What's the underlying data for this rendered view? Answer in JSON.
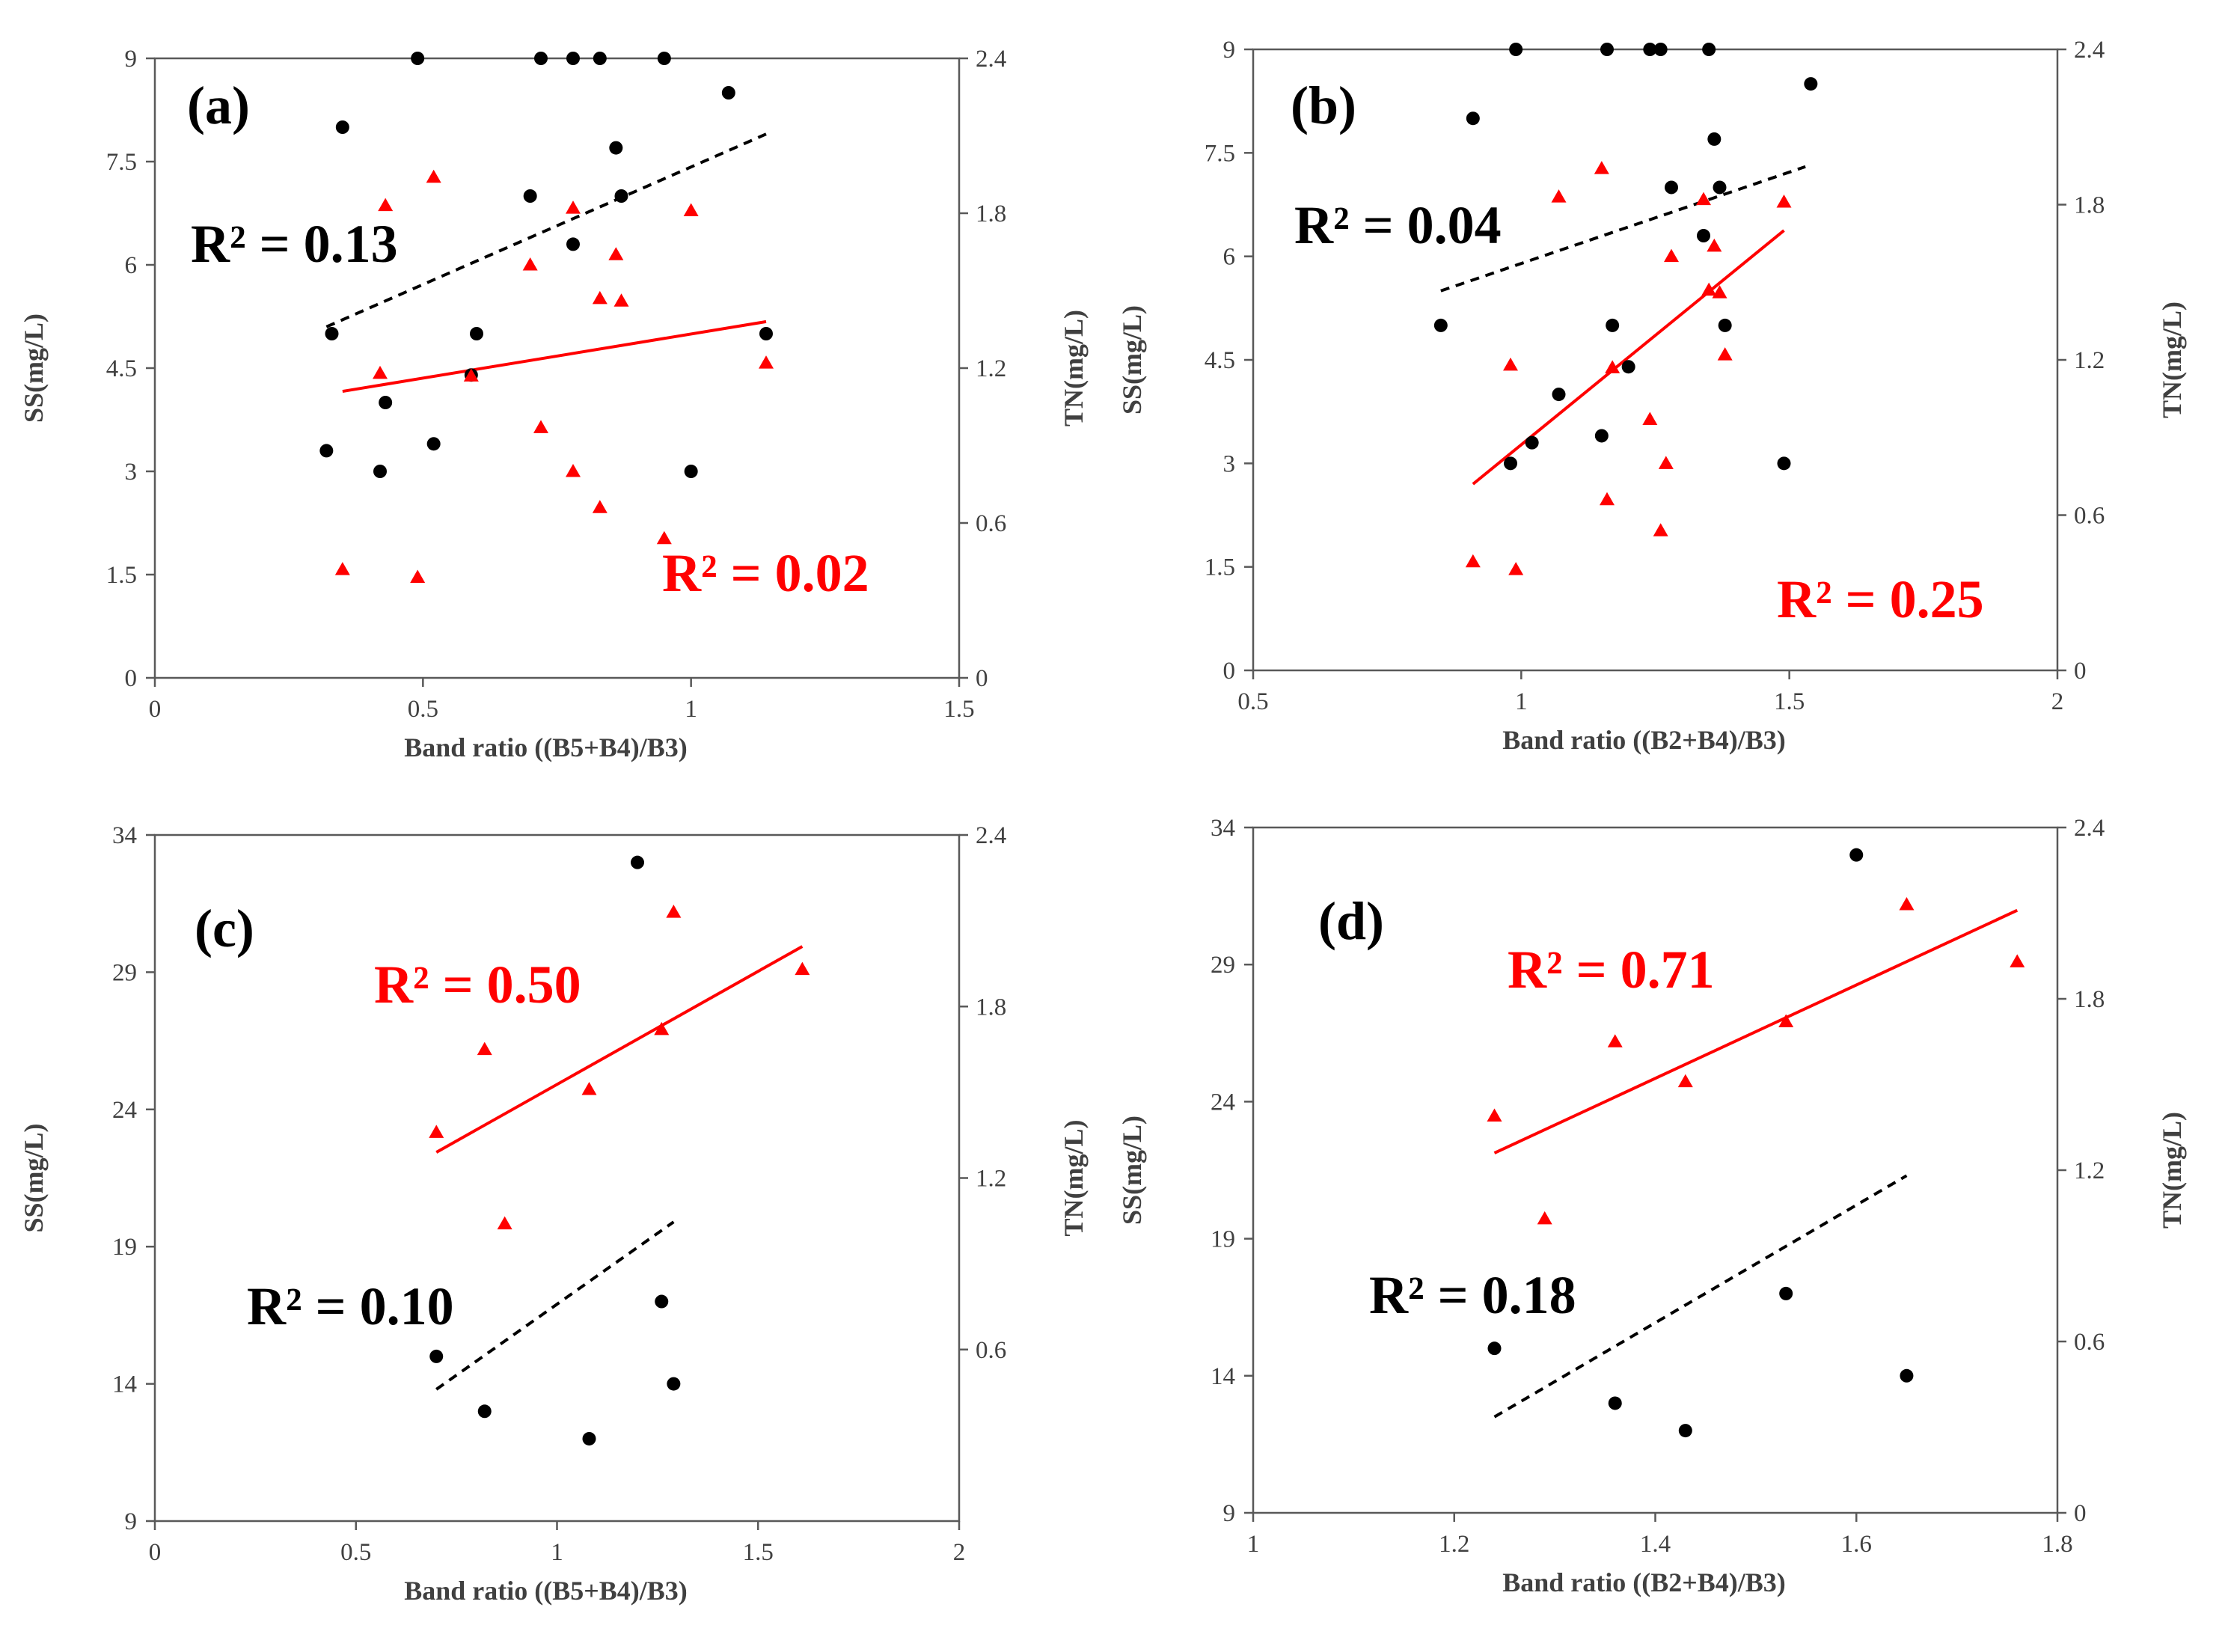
{
  "colors": {
    "ss": "#000000",
    "tn": "#ff0000",
    "axis": "#595959",
    "text": "#404040"
  },
  "chart_data": [
    {
      "type": "scatter",
      "panel_label": "(a)",
      "xlabel": "Band ratio ((B5+B4)/B3)",
      "ylabel_left": "SS(mg/L)",
      "ylabel_right": "TN(mg/L)",
      "xlim": [
        0,
        1.5
      ],
      "ylim_left": [
        0,
        9
      ],
      "ylim_right": [
        0,
        2.4
      ],
      "xticks": [
        0,
        0.5,
        1,
        1.5
      ],
      "xtick_labels": [
        "0",
        "0.5",
        "1",
        "1.5"
      ],
      "yticks_left": [
        0,
        1.5,
        3,
        4.5,
        6,
        7.5,
        9
      ],
      "ytick_labels_left": [
        "0",
        "1.5",
        "3",
        "4.5",
        "6",
        "7.5",
        "9"
      ],
      "yticks_right": [
        0,
        0.6,
        1.2,
        1.8,
        2.4
      ],
      "ytick_labels_right": [
        "0",
        "0.6",
        "1.2",
        "1.8",
        "2.4"
      ],
      "ss_points": [
        [
          0.32,
          3.3
        ],
        [
          0.33,
          5.0
        ],
        [
          0.35,
          8.0
        ],
        [
          0.42,
          3.0
        ],
        [
          0.43,
          4.0
        ],
        [
          0.49,
          9.0
        ],
        [
          0.52,
          3.4
        ],
        [
          0.59,
          4.4
        ],
        [
          0.6,
          5.0
        ],
        [
          0.7,
          7.0
        ],
        [
          0.72,
          9.0
        ],
        [
          0.78,
          6.3
        ],
        [
          0.78,
          9.0
        ],
        [
          0.83,
          9.0
        ],
        [
          0.86,
          7.7
        ],
        [
          0.87,
          7.0
        ],
        [
          0.95,
          9.0
        ],
        [
          1.0,
          3.0
        ],
        [
          1.07,
          8.5
        ],
        [
          1.14,
          5.0
        ]
      ],
      "tn_points": [
        [
          0.35,
          0.42
        ],
        [
          0.42,
          1.18
        ],
        [
          0.43,
          1.83
        ],
        [
          0.49,
          0.39
        ],
        [
          0.52,
          1.94
        ],
        [
          0.59,
          1.17
        ],
        [
          0.7,
          1.6
        ],
        [
          0.72,
          0.97
        ],
        [
          0.78,
          0.8
        ],
        [
          0.78,
          1.82
        ],
        [
          0.83,
          0.66
        ],
        [
          0.83,
          1.47
        ],
        [
          0.86,
          1.64
        ],
        [
          0.87,
          1.46
        ],
        [
          0.95,
          0.54
        ],
        [
          1.0,
          1.81
        ],
        [
          1.14,
          1.22
        ]
      ],
      "ss_trend": {
        "x": [
          0.32,
          1.14
        ],
        "y": [
          5.1,
          7.9
        ]
      },
      "tn_trend": {
        "x": [
          0.35,
          1.14
        ],
        "y": [
          1.11,
          1.38
        ]
      },
      "ss_r2": "R² = 0.13",
      "tn_r2": "R² = 0.02"
    },
    {
      "type": "scatter",
      "panel_label": "(b)",
      "xlabel": "Band ratio ((B2+B4)/B3)",
      "ylabel_left": "SS(mg/L)",
      "ylabel_right": "TN(mg/L)",
      "xlim": [
        0.5,
        2
      ],
      "ylim_left": [
        0,
        9
      ],
      "ylim_right": [
        0,
        2.4
      ],
      "xticks": [
        0.5,
        1,
        1.5,
        2
      ],
      "xtick_labels": [
        "0.5",
        "1",
        "1.5",
        "2"
      ],
      "yticks_left": [
        0,
        1.5,
        3,
        4.5,
        6,
        7.5,
        9
      ],
      "ytick_labels_left": [
        "0",
        "1.5",
        "3",
        "4.5",
        "6",
        "7.5",
        "9"
      ],
      "yticks_right": [
        0,
        0.6,
        1.2,
        1.8,
        2.4
      ],
      "ytick_labels_right": [
        "0",
        "0.6",
        "1.2",
        "1.8",
        "2.4"
      ],
      "ss_points": [
        [
          0.85,
          5.0
        ],
        [
          0.91,
          8.0
        ],
        [
          0.98,
          3.0
        ],
        [
          0.99,
          9.0
        ],
        [
          1.02,
          3.3
        ],
        [
          1.07,
          4.0
        ],
        [
          1.15,
          3.4
        ],
        [
          1.16,
          9.0
        ],
        [
          1.17,
          5.0
        ],
        [
          1.2,
          4.4
        ],
        [
          1.24,
          9.0
        ],
        [
          1.26,
          9.0
        ],
        [
          1.28,
          7.0
        ],
        [
          1.34,
          6.3
        ],
        [
          1.35,
          9.0
        ],
        [
          1.36,
          7.7
        ],
        [
          1.37,
          7.0
        ],
        [
          1.38,
          5.0
        ],
        [
          1.49,
          3.0
        ],
        [
          1.54,
          8.5
        ]
      ],
      "tn_points": [
        [
          0.91,
          0.42
        ],
        [
          0.98,
          1.18
        ],
        [
          0.99,
          0.39
        ],
        [
          1.07,
          1.83
        ],
        [
          1.15,
          1.94
        ],
        [
          1.16,
          0.66
        ],
        [
          1.17,
          1.17
        ],
        [
          1.24,
          0.97
        ],
        [
          1.26,
          0.54
        ],
        [
          1.27,
          0.8
        ],
        [
          1.28,
          1.6
        ],
        [
          1.34,
          1.82
        ],
        [
          1.35,
          1.47
        ],
        [
          1.36,
          1.64
        ],
        [
          1.37,
          1.46
        ],
        [
          1.38,
          1.22
        ],
        [
          1.49,
          1.81
        ]
      ],
      "ss_trend": {
        "x": [
          0.85,
          1.53
        ],
        "y": [
          5.5,
          7.3
        ]
      },
      "tn_trend": {
        "x": [
          0.91,
          1.49
        ],
        "y": [
          0.72,
          1.7
        ]
      },
      "ss_r2": "R² = 0.04",
      "tn_r2": "R² = 0.25"
    },
    {
      "type": "scatter",
      "panel_label": "(c)",
      "xlabel": "Band ratio ((B5+B4)/B3)",
      "ylabel_left": "SS(mg/L)",
      "ylabel_right": "TN(mg/L)",
      "xlim": [
        0,
        2
      ],
      "ylim_left": [
        9,
        34
      ],
      "ylim_right": [
        0,
        2.4
      ],
      "xticks": [
        0,
        0.5,
        1,
        1.5,
        2
      ],
      "xtick_labels": [
        "0",
        "0.5",
        "1",
        "1.5",
        "2"
      ],
      "yticks_left": [
        9,
        14,
        19,
        24,
        29,
        34
      ],
      "ytick_labels_left": [
        "9",
        "14",
        "19",
        "24",
        "29",
        "34"
      ],
      "yticks_right": [
        0.6,
        1.2,
        1.8,
        2.4
      ],
      "ytick_labels_right": [
        "0.6",
        "1.2",
        "1.8",
        "2.4"
      ],
      "ss_points": [
        [
          0.7,
          15.0
        ],
        [
          0.82,
          13.0
        ],
        [
          1.08,
          12.0
        ],
        [
          1.2,
          33.0
        ],
        [
          1.26,
          17.0
        ],
        [
          1.29,
          14.0
        ]
      ],
      "tn_points": [
        [
          0.7,
          1.36
        ],
        [
          0.82,
          1.65
        ],
        [
          0.87,
          1.04
        ],
        [
          1.08,
          1.51
        ],
        [
          1.26,
          1.72
        ],
        [
          1.29,
          2.13
        ],
        [
          1.61,
          1.93
        ]
      ],
      "ss_trend": {
        "x": [
          0.7,
          1.29
        ],
        "y": [
          13.8,
          19.9
        ]
      },
      "tn_trend": {
        "x": [
          0.7,
          1.61
        ],
        "y": [
          1.29,
          2.01
        ]
      },
      "ss_r2": "R² = 0.10",
      "tn_r2": "R² = 0.50"
    },
    {
      "type": "scatter",
      "panel_label": "(d)",
      "xlabel": "Band ratio ((B2+B4)/B3)",
      "ylabel_left": "SS(mg/L)",
      "ylabel_right": "TN(mg/L)",
      "xlim": [
        1,
        1.8
      ],
      "ylim_left": [
        9,
        34
      ],
      "ylim_right": [
        0,
        2.4
      ],
      "xticks": [
        1,
        1.2,
        1.4,
        1.6,
        1.8
      ],
      "xtick_labels": [
        "1",
        "1.2",
        "1.4",
        "1.6",
        "1.8"
      ],
      "yticks_left": [
        9,
        14,
        19,
        24,
        29,
        34
      ],
      "ytick_labels_left": [
        "9",
        "14",
        "19",
        "24",
        "29",
        "34"
      ],
      "yticks_right": [
        0,
        0.6,
        1.2,
        1.8,
        2.4
      ],
      "ytick_labels_right": [
        "0",
        "0.6",
        "1.2",
        "1.8",
        "2.4"
      ],
      "ss_points": [
        [
          1.24,
          15.0
        ],
        [
          1.36,
          13.0
        ],
        [
          1.43,
          12.0
        ],
        [
          1.53,
          17.0
        ],
        [
          1.6,
          33.0
        ],
        [
          1.65,
          14.0
        ]
      ],
      "tn_points": [
        [
          1.24,
          1.39
        ],
        [
          1.29,
          1.03
        ],
        [
          1.36,
          1.65
        ],
        [
          1.43,
          1.51
        ],
        [
          1.53,
          1.72
        ],
        [
          1.65,
          2.13
        ],
        [
          1.76,
          1.93
        ]
      ],
      "ss_trend": {
        "x": [
          1.24,
          1.65
        ],
        "y": [
          12.5,
          21.3
        ]
      },
      "tn_trend": {
        "x": [
          1.24,
          1.76
        ],
        "y": [
          1.26,
          2.11
        ]
      },
      "ss_r2": "R² = 0.18",
      "tn_r2": "R² = 0.71"
    }
  ]
}
